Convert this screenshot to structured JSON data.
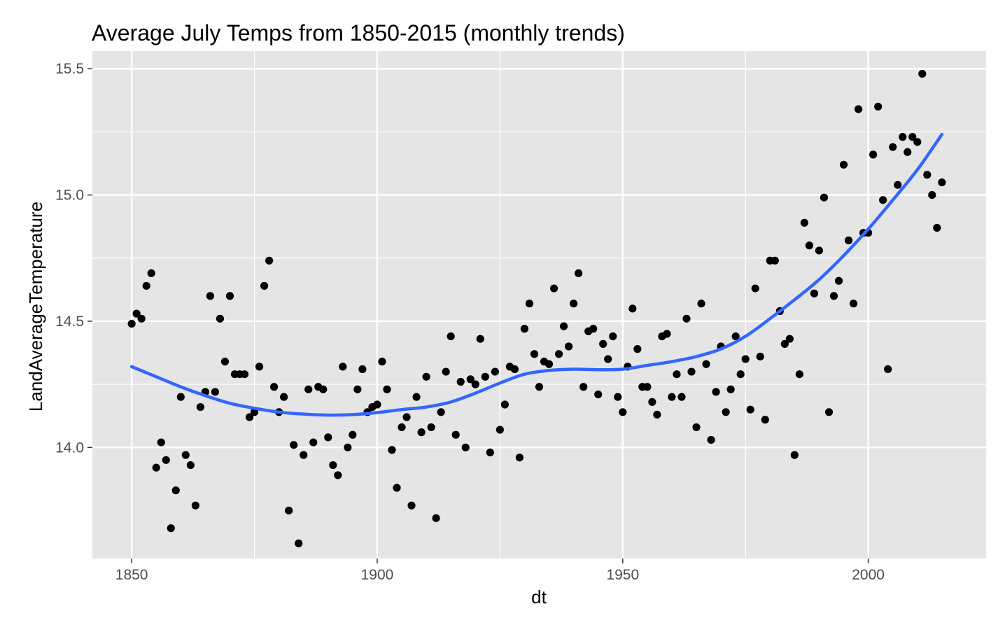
{
  "chart_data": {
    "type": "scatter",
    "title": "Average July Temps from 1850-2015 (monthly trends)",
    "xlabel": "dt",
    "ylabel": "LandAverageTemperature",
    "xlim": [
      1842,
      2024
    ],
    "ylim": [
      13.56,
      15.57
    ],
    "x_ticks": [
      1850,
      1900,
      1950,
      2000
    ],
    "x_tick_labels": [
      "1850",
      "1900",
      "1950",
      "2000"
    ],
    "x_minor_ticks": [
      1875,
      1925,
      1975
    ],
    "y_ticks": [
      14.0,
      14.5,
      15.0,
      15.5
    ],
    "y_tick_labels": [
      "14.0",
      "14.5",
      "15.0",
      "15.5"
    ],
    "y_minor_ticks": [
      14.25,
      14.75,
      15.25
    ],
    "grid": true,
    "theme": "ggplot-gray",
    "colors": {
      "panel_background": "#e5e5e5",
      "grid": "#ffffff",
      "points": "#000000",
      "trend": "#3366ff"
    },
    "series": [
      {
        "type": "scatter",
        "x": [
          1850,
          1851,
          1852,
          1853,
          1854,
          1855,
          1856,
          1857,
          1858,
          1859,
          1860,
          1861,
          1862,
          1863,
          1864,
          1865,
          1866,
          1867,
          1868,
          1869,
          1870,
          1871,
          1872,
          1873,
          1874,
          1875,
          1876,
          1877,
          1878,
          1879,
          1880,
          1881,
          1882,
          1883,
          1884,
          1885,
          1886,
          1887,
          1888,
          1889,
          1890,
          1891,
          1892,
          1893,
          1894,
          1895,
          1896,
          1897,
          1898,
          1899,
          1900,
          1901,
          1902,
          1903,
          1904,
          1905,
          1906,
          1907,
          1908,
          1909,
          1910,
          1911,
          1912,
          1913,
          1914,
          1915,
          1916,
          1917,
          1918,
          1919,
          1920,
          1921,
          1922,
          1923,
          1924,
          1925,
          1926,
          1927,
          1928,
          1929,
          1930,
          1931,
          1932,
          1933,
          1934,
          1935,
          1936,
          1937,
          1938,
          1939,
          1940,
          1941,
          1942,
          1943,
          1944,
          1945,
          1946,
          1947,
          1948,
          1949,
          1950,
          1951,
          1952,
          1953,
          1954,
          1955,
          1956,
          1957,
          1958,
          1959,
          1960,
          1961,
          1962,
          1963,
          1964,
          1965,
          1966,
          1967,
          1968,
          1969,
          1970,
          1971,
          1972,
          1973,
          1974,
          1975,
          1976,
          1977,
          1978,
          1979,
          1980,
          1981,
          1982,
          1983,
          1984,
          1985,
          1986,
          1987,
          1988,
          1989,
          1990,
          1991,
          1992,
          1993,
          1994,
          1995,
          1996,
          1997,
          1998,
          1999,
          2000,
          2001,
          2002,
          2003,
          2004,
          2005,
          2006,
          2007,
          2008,
          2009,
          2010,
          2011,
          2012,
          2013,
          2014,
          2015
        ],
        "y": [
          14.49,
          14.53,
          14.51,
          14.64,
          14.69,
          13.92,
          14.02,
          13.95,
          13.68,
          13.83,
          14.2,
          13.97,
          13.93,
          13.77,
          14.16,
          14.22,
          14.6,
          14.22,
          14.51,
          14.34,
          14.6,
          14.29,
          14.29,
          14.29,
          14.12,
          14.14,
          14.32,
          14.64,
          14.74,
          14.24,
          14.14,
          14.2,
          13.75,
          14.01,
          13.62,
          13.97,
          14.23,
          14.02,
          14.24,
          14.23,
          14.04,
          13.93,
          13.89,
          14.32,
          14.0,
          14.05,
          14.23,
          14.31,
          14.14,
          14.16,
          14.17,
          14.34,
          14.23,
          13.99,
          13.84,
          14.08,
          14.12,
          13.77,
          14.2,
          14.06,
          14.28,
          14.08,
          13.72,
          14.14,
          14.3,
          14.44,
          14.05,
          14.26,
          14.0,
          14.27,
          14.25,
          14.43,
          14.28,
          13.98,
          14.3,
          14.07,
          14.17,
          14.32,
          14.31,
          13.96,
          14.47,
          14.57,
          14.37,
          14.24,
          14.34,
          14.33,
          14.63,
          14.37,
          14.48,
          14.4,
          14.57,
          14.69,
          14.24,
          14.46,
          14.47,
          14.21,
          14.41,
          14.35,
          14.44,
          14.2,
          14.14,
          14.32,
          14.55,
          14.39,
          14.24,
          14.24,
          14.18,
          14.13,
          14.44,
          14.45,
          14.2,
          14.29,
          14.2,
          14.51,
          14.3,
          14.08,
          14.57,
          14.33,
          14.03,
          14.22,
          14.4,
          14.14,
          14.23,
          14.44,
          14.29,
          14.35,
          14.15,
          14.63,
          14.36,
          14.11,
          14.74,
          14.74,
          14.54,
          14.41,
          14.43,
          13.97,
          14.29,
          14.89,
          14.8,
          14.61,
          14.78,
          14.99,
          14.14,
          14.6,
          14.66,
          15.12,
          14.82,
          14.57,
          15.34,
          14.85,
          14.85,
          15.16,
          15.35,
          14.98,
          14.31,
          15.19,
          15.04,
          15.23,
          15.17,
          15.23,
          15.21,
          15.48,
          15.08,
          15.0,
          14.87,
          15.05
        ]
      },
      {
        "type": "line",
        "name": "",
        "x": [
          1850,
          1855,
          1860,
          1865,
          1870,
          1875,
          1880,
          1885,
          1890,
          1895,
          1900,
          1905,
          1910,
          1915,
          1920,
          1925,
          1930,
          1935,
          1940,
          1945,
          1950,
          1955,
          1960,
          1965,
          1970,
          1975,
          1980,
          1985,
          1990,
          1995,
          2000,
          2005,
          2010,
          2015
        ],
        "y": [
          14.32,
          14.28,
          14.24,
          14.205,
          14.175,
          14.155,
          14.14,
          14.132,
          14.128,
          14.13,
          14.138,
          14.15,
          14.16,
          14.18,
          14.215,
          14.255,
          14.29,
          14.305,
          14.31,
          14.308,
          14.31,
          14.325,
          14.34,
          14.36,
          14.39,
          14.44,
          14.51,
          14.585,
          14.665,
          14.76,
          14.865,
          14.98,
          15.1,
          15.24
        ]
      }
    ]
  }
}
